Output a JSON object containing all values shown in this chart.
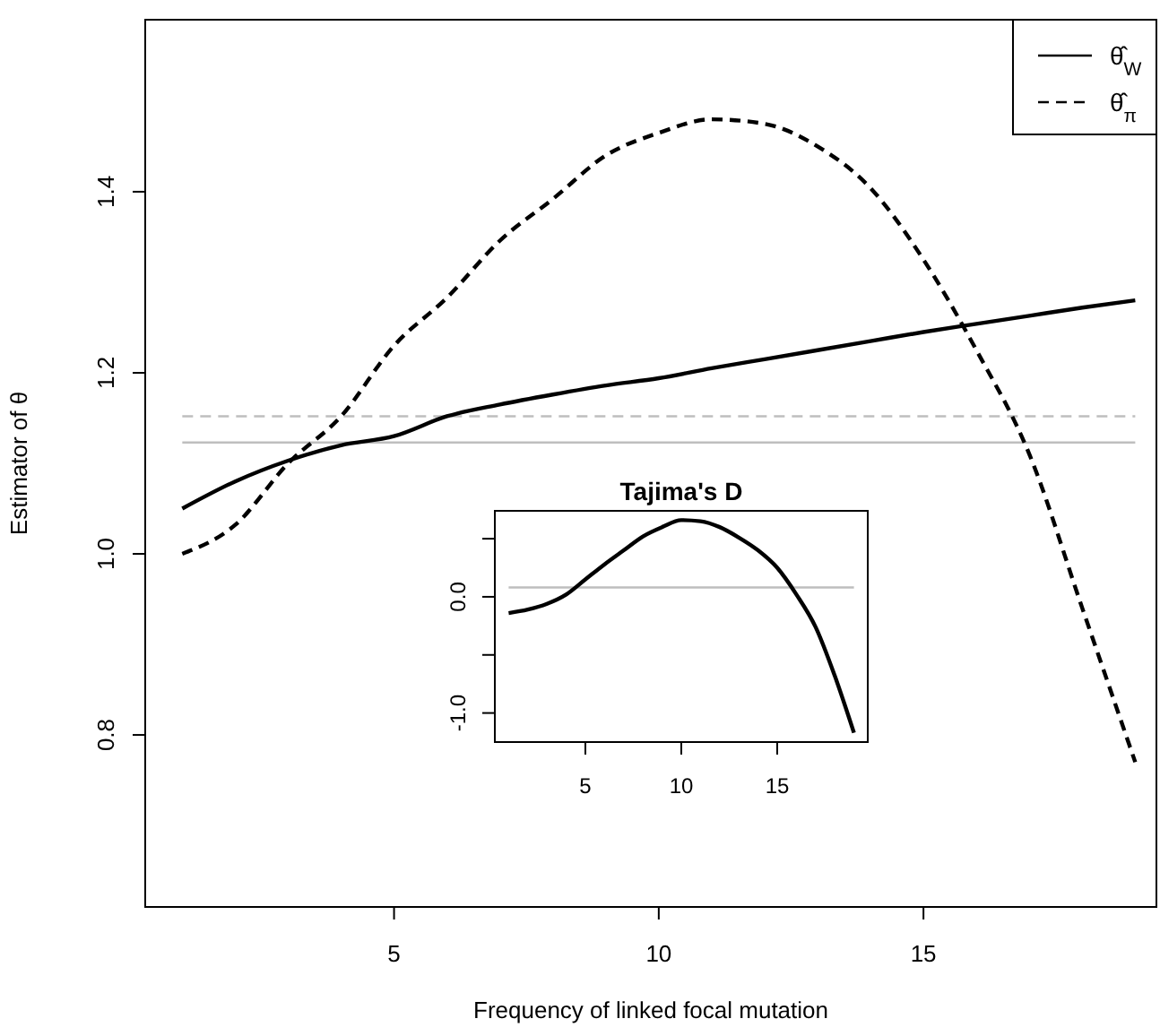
{
  "chart_data": [
    {
      "type": "line",
      "xlabel": "Frequency of linked focal mutation",
      "ylabel": "Estimator of θ",
      "x": [
        1,
        2,
        3,
        4,
        5,
        6,
        7,
        8,
        9,
        10,
        11,
        12,
        13,
        14,
        15,
        16,
        17,
        18,
        19
      ],
      "xlim": [
        0.3,
        19.4
      ],
      "ylim": [
        0.61,
        1.59
      ],
      "xticks": [
        5,
        10,
        15
      ],
      "yticks": [
        0.8,
        {
          "value": 1,
          "label": "1.0"
        },
        1.2,
        1.4
      ],
      "legend": "top right",
      "series": [
        {
          "name": "θ̂$_{W}$",
          "color": "#000000",
          "line_style": "solid",
          "values": [
            1.05,
            1.08,
            1.103,
            1.12,
            1.13,
            1.152,
            1.165,
            1.176,
            1.186,
            1.194,
            1.205,
            1.215,
            1.225,
            1.235,
            1.245,
            1.254,
            1.263,
            1.272,
            1.28
          ]
        },
        {
          "name": "θ̂$_{π}$",
          "color": "#000000",
          "line_style": "dashed",
          "values": [
            1.0,
            1.032,
            1.1,
            1.152,
            1.23,
            1.283,
            1.346,
            1.392,
            1.44,
            1.465,
            1.48,
            1.475,
            1.45,
            1.404,
            1.325,
            1.225,
            1.11,
            0.94,
            0.77
          ]
        }
      ],
      "ref_lines": [
        {
          "axis": "y",
          "value": 1.152,
          "color": "#bebebe",
          "line_style": "dashed"
        },
        {
          "axis": "y",
          "value": 1.123,
          "color": "#bebebe",
          "line_style": "solid"
        }
      ]
    },
    {
      "type": "line",
      "title": "Tajima's D",
      "x": [
        1,
        2,
        3,
        4,
        5,
        6,
        7,
        8,
        9,
        10,
        11,
        12,
        13,
        14,
        15,
        16,
        17,
        18,
        19
      ],
      "xlim": [
        0.28,
        19.72
      ],
      "ylim": [
        -1.25,
        0.74
      ],
      "xticks": [
        5,
        10,
        15
      ],
      "yticks": [
        {
          "value": 0.5,
          "label": null
        },
        {
          "value": 0,
          "label": "0.0"
        },
        {
          "value": -0.5,
          "label": null
        },
        {
          "value": -1,
          "label": "-1.0"
        }
      ],
      "series": [
        {
          "color": "#000000",
          "line_style": "solid",
          "values": [
            -0.14,
            -0.11,
            -0.06,
            0.02,
            0.15,
            0.28,
            0.4,
            0.52,
            0.6,
            0.66,
            0.65,
            0.6,
            0.51,
            0.4,
            0.25,
            0.02,
            -0.26,
            -0.68,
            -1.17
          ]
        }
      ],
      "ref_lines": [
        {
          "axis": "y",
          "value": 0.08,
          "color": "#bebebe",
          "line_style": "solid"
        }
      ]
    }
  ]
}
